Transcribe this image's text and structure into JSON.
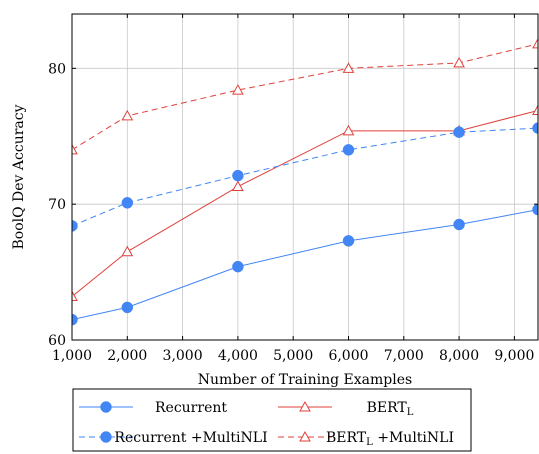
{
  "chart_data": {
    "type": "line",
    "xlabel": "Number of Training Examples",
    "ylabel": "BoolQ Dev Accuracy",
    "xlim": [
      1000,
      9427
    ],
    "ylim": [
      60,
      84
    ],
    "x_ticks": [
      1000,
      2000,
      3000,
      4000,
      5000,
      6000,
      7000,
      8000,
      9000
    ],
    "x_tick_labels": [
      "1,000",
      "2,000",
      "3,000",
      "4,000",
      "5,000",
      "6,000",
      "7,000",
      "8,000",
      "9,000"
    ],
    "y_ticks": [
      60,
      70,
      80
    ],
    "y_tick_labels": [
      "60",
      "70",
      "80"
    ],
    "grid": true,
    "legend_position": "bottom",
    "series": [
      {
        "name": "Recurrent",
        "color": "#4285f4",
        "line_style": "solid",
        "marker": "circle",
        "x": [
          1000,
          2000,
          4000,
          6000,
          8000,
          9427
        ],
        "y": [
          61.5,
          62.4,
          65.4,
          67.3,
          68.5,
          69.6
        ]
      },
      {
        "name": "BERT",
        "name_subscript": "L",
        "color": "#e0403a",
        "line_style": "solid",
        "marker": "triangle",
        "x": [
          1000,
          2000,
          4000,
          6000,
          8000,
          9427
        ],
        "y": [
          63.2,
          66.5,
          71.3,
          75.4,
          75.4,
          76.9
        ]
      },
      {
        "name": "Recurrent +MultiNLI",
        "color": "#4285f4",
        "line_style": "dashed",
        "marker": "circle",
        "x": [
          1000,
          2000,
          4000,
          6000,
          8000,
          9427
        ],
        "y": [
          68.4,
          70.1,
          72.1,
          74.0,
          75.3,
          75.6
        ]
      },
      {
        "name": "BERT",
        "name_subscript": "L",
        "name_suffix": " +MultiNLI",
        "color": "#e0403a",
        "line_style": "dashed",
        "marker": "triangle",
        "x": [
          1000,
          2000,
          4000,
          6000,
          8000,
          9427
        ],
        "y": [
          74.0,
          76.5,
          78.4,
          80.0,
          80.4,
          81.8
        ]
      }
    ]
  }
}
